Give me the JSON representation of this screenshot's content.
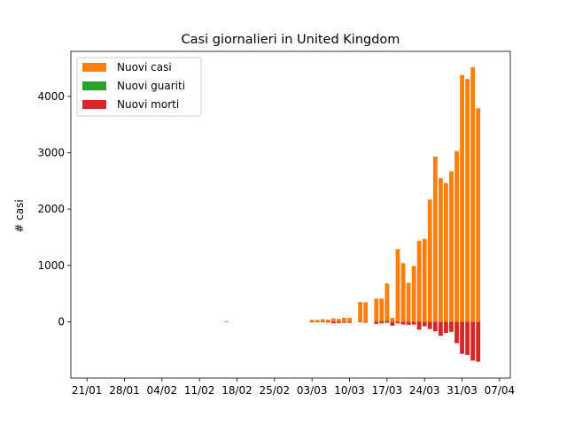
{
  "chart_data": {
    "type": "bar",
    "title": "Casi giornalieri in United Kingdom",
    "xlabel": "",
    "ylabel": "# casi",
    "x_axis": {
      "start_date": "2020-01-18",
      "tick_labels": [
        "21/01",
        "28/01",
        "04/02",
        "11/02",
        "18/02",
        "25/02",
        "03/03",
        "10/03",
        "17/03",
        "24/03",
        "31/03",
        "07/04"
      ],
      "tick_dates": [
        "2020-01-21",
        "2020-01-28",
        "2020-02-04",
        "2020-02-11",
        "2020-02-18",
        "2020-02-25",
        "2020-03-03",
        "2020-03-10",
        "2020-03-17",
        "2020-03-24",
        "2020-03-31",
        "2020-04-07"
      ],
      "range": [
        "2020-01-18",
        "2020-04-09"
      ]
    },
    "ylim": [
      -1000,
      4800
    ],
    "y_ticks": [
      0,
      1000,
      2000,
      3000,
      4000
    ],
    "grid": false,
    "legend_placement": "upper-left",
    "series": [
      {
        "name": "Nuovi casi",
        "color": "#ff7f0e",
        "points": [
          [
            "2020-02-16",
            5
          ],
          [
            "2020-03-03",
            35
          ],
          [
            "2020-03-04",
            30
          ],
          [
            "2020-03-05",
            45
          ],
          [
            "2020-03-06",
            35
          ],
          [
            "2020-03-07",
            60
          ],
          [
            "2020-03-08",
            50
          ],
          [
            "2020-03-09",
            70
          ],
          [
            "2020-03-10",
            70
          ],
          [
            "2020-03-12",
            350
          ],
          [
            "2020-03-13",
            345
          ],
          [
            "2020-03-15",
            410
          ],
          [
            "2020-03-16",
            410
          ],
          [
            "2020-03-17",
            680
          ],
          [
            "2020-03-18",
            70
          ],
          [
            "2020-03-19",
            1290
          ],
          [
            "2020-03-20",
            1040
          ],
          [
            "2020-03-21",
            690
          ],
          [
            "2020-03-22",
            990
          ],
          [
            "2020-03-23",
            1440
          ],
          [
            "2020-03-24",
            1470
          ],
          [
            "2020-03-25",
            2170
          ],
          [
            "2020-03-26",
            2930
          ],
          [
            "2020-03-27",
            2550
          ],
          [
            "2020-03-28",
            2460
          ],
          [
            "2020-03-29",
            2670
          ],
          [
            "2020-03-30",
            3030
          ],
          [
            "2020-03-31",
            4380
          ],
          [
            "2020-04-01",
            4310
          ],
          [
            "2020-04-02",
            4520
          ],
          [
            "2020-04-03",
            3790
          ]
        ]
      },
      {
        "name": "Nuovi guariti",
        "color": "#2ca02c",
        "points": [
          [
            "2020-02-16",
            8
          ],
          [
            "2020-03-16",
            15
          ],
          [
            "2020-03-17",
            20
          ],
          [
            "2020-03-23",
            -30
          ]
        ]
      },
      {
        "name": "Nuovi morti",
        "color": "#d62728",
        "points": [
          [
            "2020-03-03",
            -5
          ],
          [
            "2020-03-04",
            -5
          ],
          [
            "2020-03-05",
            -10
          ],
          [
            "2020-03-06",
            -15
          ],
          [
            "2020-03-07",
            -30
          ],
          [
            "2020-03-08",
            -25
          ],
          [
            "2020-03-09",
            -20
          ],
          [
            "2020-03-10",
            -20
          ],
          [
            "2020-03-12",
            -10
          ],
          [
            "2020-03-13",
            -15
          ],
          [
            "2020-03-15",
            -40
          ],
          [
            "2020-03-16",
            -30
          ],
          [
            "2020-03-17",
            -20
          ],
          [
            "2020-03-18",
            -70
          ],
          [
            "2020-03-19",
            -30
          ],
          [
            "2020-03-20",
            -50
          ],
          [
            "2020-03-21",
            -55
          ],
          [
            "2020-03-22",
            -50
          ],
          [
            "2020-03-23",
            -140
          ],
          [
            "2020-03-24",
            -80
          ],
          [
            "2020-03-25",
            -130
          ],
          [
            "2020-03-26",
            -170
          ],
          [
            "2020-03-27",
            -250
          ],
          [
            "2020-03-28",
            -200
          ],
          [
            "2020-03-29",
            -180
          ],
          [
            "2020-03-30",
            -380
          ],
          [
            "2020-03-31",
            -570
          ],
          [
            "2020-04-01",
            -590
          ],
          [
            "2020-04-02",
            -690
          ],
          [
            "2020-04-03",
            -710
          ]
        ]
      }
    ]
  }
}
